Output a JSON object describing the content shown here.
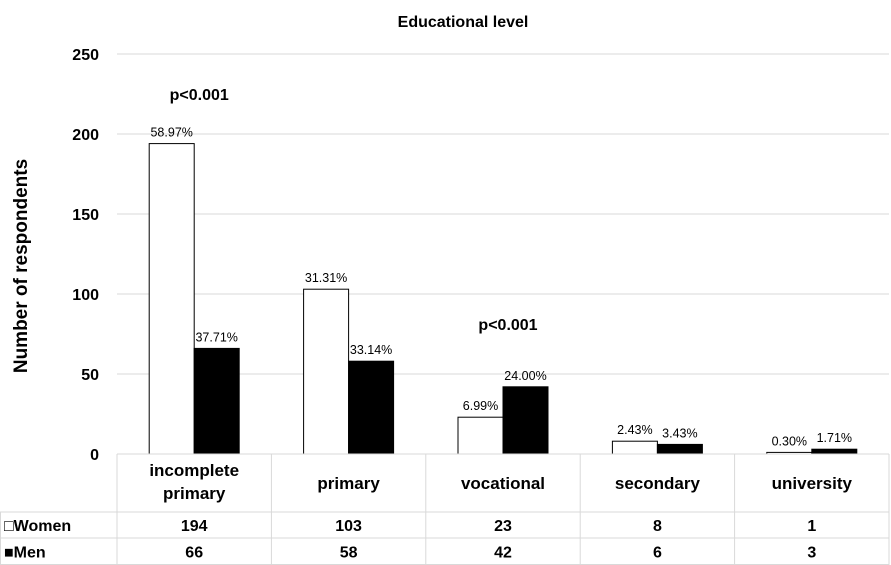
{
  "chart_data": {
    "type": "bar",
    "title": "Educational level",
    "ylabel": "Number of respondents",
    "xlabel": "",
    "ylim": [
      0,
      250
    ],
    "yticks": [
      "0",
      "50",
      "100",
      "150",
      "200",
      "250"
    ],
    "grid": true,
    "categories": [
      [
        "incomplete",
        "primary"
      ],
      [
        "primary"
      ],
      [
        "vocational"
      ],
      [
        "secondary"
      ],
      [
        "university"
      ]
    ],
    "series": [
      {
        "name": "Women",
        "legend_symbol": "□",
        "color": "#ffffff",
        "values": [
          194,
          103,
          23,
          8,
          1
        ],
        "value_labels": [
          "194",
          "103",
          "23",
          "8",
          "1"
        ],
        "percent_labels": [
          "58.97%",
          "31.31%",
          "6.99%",
          "2.43%",
          "0.30%"
        ]
      },
      {
        "name": "Men",
        "legend_symbol": "■",
        "color": "#000000",
        "values": [
          66,
          58,
          42,
          6,
          3
        ],
        "value_labels": [
          "66",
          "58",
          "42",
          "6",
          "3"
        ],
        "percent_labels": [
          "37.71%",
          "33.14%",
          "24.00%",
          "3.43%",
          "1.71%"
        ]
      }
    ],
    "annotations": [
      {
        "text": "p<0.001",
        "category_index": 0
      },
      {
        "text": "p<0.001",
        "category_index": 2
      }
    ],
    "data_table": true
  }
}
